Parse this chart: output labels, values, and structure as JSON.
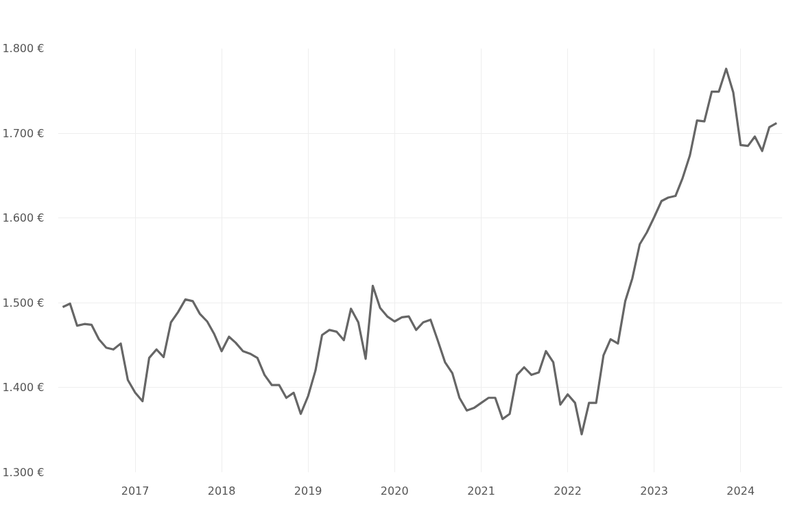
{
  "chart_data": {
    "type": "line",
    "x": [
      "2016-03",
      "2016-04",
      "2016-05",
      "2016-06",
      "2016-07",
      "2016-08",
      "2016-09",
      "2016-10",
      "2016-11",
      "2016-12",
      "2017-01",
      "2017-02",
      "2017-03",
      "2017-04",
      "2017-05",
      "2017-06",
      "2017-07",
      "2017-08",
      "2017-09",
      "2017-10",
      "2017-11",
      "2017-12",
      "2018-01",
      "2018-02",
      "2018-03",
      "2018-04",
      "2018-05",
      "2018-06",
      "2018-07",
      "2018-08",
      "2018-09",
      "2018-10",
      "2018-11",
      "2018-12",
      "2019-01",
      "2019-02",
      "2019-03",
      "2019-04",
      "2019-05",
      "2019-06",
      "2019-07",
      "2019-08",
      "2019-09",
      "2019-10",
      "2019-11",
      "2019-12",
      "2020-01",
      "2020-02",
      "2020-03",
      "2020-04",
      "2020-05",
      "2020-06",
      "2020-07",
      "2020-08",
      "2020-09",
      "2020-10",
      "2020-11",
      "2020-12",
      "2021-01",
      "2021-02",
      "2021-03",
      "2021-04",
      "2021-05",
      "2021-06",
      "2021-07",
      "2021-08",
      "2021-09",
      "2021-10",
      "2021-11",
      "2021-12",
      "2022-01",
      "2022-02",
      "2022-03",
      "2022-04",
      "2022-05",
      "2022-06",
      "2022-07",
      "2022-08",
      "2022-09",
      "2022-10",
      "2022-11",
      "2022-12",
      "2023-01",
      "2023-02",
      "2023-03",
      "2023-04",
      "2023-05",
      "2023-06",
      "2023-07",
      "2023-08",
      "2023-09",
      "2023-10",
      "2023-11",
      "2023-12",
      "2024-01",
      "2024-02",
      "2024-03",
      "2024-04",
      "2024-05",
      "2024-06"
    ],
    "series": [
      {
        "color": "#666666",
        "values": [
          1495,
          1499,
          1473,
          1475,
          1474,
          1457,
          1447,
          1445,
          1452,
          1409,
          1394,
          1384,
          1435,
          1445,
          1436,
          1477,
          1489,
          1504,
          1502,
          1487,
          1478,
          1463,
          1443,
          1460,
          1453,
          1443,
          1440,
          1435,
          1415,
          1403,
          1403,
          1388,
          1394,
          1369,
          1390,
          1420,
          1462,
          1468,
          1466,
          1456,
          1493,
          1477,
          1434,
          1520,
          1494,
          1484,
          1478,
          1483,
          1484,
          1468,
          1477,
          1480,
          1456,
          1430,
          1417,
          1388,
          1373,
          1376,
          1382,
          1388,
          1388,
          1363,
          1369,
          1415,
          1424,
          1415,
          1418,
          1443,
          1430,
          1380,
          1392,
          1382,
          1345,
          1382,
          1382,
          1438,
          1457,
          1452,
          1502,
          1529,
          1569,
          1583,
          1601,
          1620,
          1624,
          1626,
          1647,
          1674,
          1715,
          1714,
          1749,
          1749,
          1776,
          1748,
          1686,
          1685,
          1696,
          1679,
          1707,
          1712
        ]
      }
    ],
    "xlim": [
      "2016-02-10",
      "2024-06-25"
    ],
    "xticks": [
      {
        "value": "2017-01-01",
        "label": "2017"
      },
      {
        "value": "2018-01-01",
        "label": "2018"
      },
      {
        "value": "2019-01-01",
        "label": "2019"
      },
      {
        "value": "2020-01-01",
        "label": "2020"
      },
      {
        "value": "2021-01-01",
        "label": "2021"
      },
      {
        "value": "2022-01-01",
        "label": "2022"
      },
      {
        "value": "2023-01-01",
        "label": "2023"
      },
      {
        "value": "2024-01-01",
        "label": "2024"
      }
    ],
    "ylim": [
      1300,
      1800
    ],
    "yticks": [
      {
        "value": 1300,
        "label": "1.300 €"
      },
      {
        "value": 1400,
        "label": "1.400 €"
      },
      {
        "value": 1500,
        "label": "1.500 €"
      },
      {
        "value": 1600,
        "label": "1.600 €"
      },
      {
        "value": 1700,
        "label": "1.700 €"
      },
      {
        "value": 1800,
        "label": "1.800 €"
      }
    ],
    "grid": true,
    "marker": "none",
    "line_style": "solid"
  }
}
